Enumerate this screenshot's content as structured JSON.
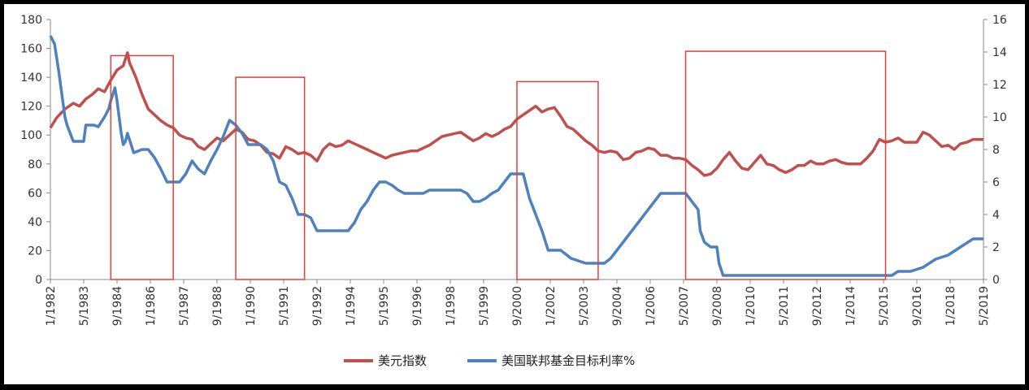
{
  "chart_data": {
    "type": "line",
    "title": "",
    "xlabel": "",
    "ylabel_left": "",
    "ylabel_right": "",
    "ylim_left": [
      0,
      180
    ],
    "ylim_right": [
      0,
      16
    ],
    "y_ticks_left": [
      0,
      20,
      40,
      60,
      80,
      100,
      120,
      140,
      160,
      180
    ],
    "y_ticks_right": [
      0,
      2,
      4,
      6,
      8,
      10,
      12,
      14,
      16
    ],
    "x_ticks": [
      "1/1982",
      "5/1983",
      "9/1984",
      "1/1986",
      "5/1987",
      "9/1988",
      "1/1990",
      "5/1991",
      "9/1992",
      "1/1994",
      "5/1995",
      "9/1996",
      "1/1998",
      "5/1999",
      "9/2000",
      "1/2002",
      "5/2003",
      "9/2004",
      "1/2006",
      "5/2007",
      "9/2008",
      "1/2010",
      "5/2011",
      "9/2012",
      "1/2014",
      "5/2015",
      "9/2016",
      "1/2018",
      "5/2019"
    ],
    "x_range": [
      "1982-01",
      "2019-05"
    ],
    "grid": false,
    "legend_position": "bottom",
    "series": [
      {
        "name": "美元指数",
        "axis": "left",
        "color": "#c0504d",
        "points": [
          [
            "1982-01",
            105
          ],
          [
            "1982-04",
            112
          ],
          [
            "1982-08",
            118
          ],
          [
            "1982-12",
            122
          ],
          [
            "1983-03",
            120
          ],
          [
            "1983-06",
            125
          ],
          [
            "1983-09",
            128
          ],
          [
            "1983-12",
            132
          ],
          [
            "1984-03",
            130
          ],
          [
            "1984-06",
            138
          ],
          [
            "1984-09",
            145
          ],
          [
            "1984-12",
            148
          ],
          [
            "1985-02",
            157
          ],
          [
            "1985-03",
            150
          ],
          [
            "1985-06",
            140
          ],
          [
            "1985-09",
            128
          ],
          [
            "1985-12",
            118
          ],
          [
            "1986-03",
            114
          ],
          [
            "1986-06",
            110
          ],
          [
            "1986-09",
            107
          ],
          [
            "1986-12",
            105
          ],
          [
            "1987-03",
            100
          ],
          [
            "1987-06",
            98
          ],
          [
            "1987-09",
            97
          ],
          [
            "1987-12",
            92
          ],
          [
            "1988-03",
            90
          ],
          [
            "1988-06",
            94
          ],
          [
            "1988-09",
            98
          ],
          [
            "1988-12",
            96
          ],
          [
            "1989-03",
            100
          ],
          [
            "1989-06",
            104
          ],
          [
            "1989-09",
            102
          ],
          [
            "1989-12",
            97
          ],
          [
            "1990-03",
            96
          ],
          [
            "1990-06",
            93
          ],
          [
            "1990-09",
            88
          ],
          [
            "1990-12",
            87
          ],
          [
            "1991-03",
            84
          ],
          [
            "1991-06",
            92
          ],
          [
            "1991-09",
            90
          ],
          [
            "1991-12",
            87
          ],
          [
            "1992-03",
            88
          ],
          [
            "1992-06",
            86
          ],
          [
            "1992-09",
            82
          ],
          [
            "1992-12",
            90
          ],
          [
            "1993-03",
            94
          ],
          [
            "1993-06",
            92
          ],
          [
            "1993-09",
            93
          ],
          [
            "1993-12",
            96
          ],
          [
            "1994-03",
            94
          ],
          [
            "1994-06",
            92
          ],
          [
            "1994-09",
            90
          ],
          [
            "1994-12",
            88
          ],
          [
            "1995-03",
            86
          ],
          [
            "1995-06",
            84
          ],
          [
            "1995-09",
            86
          ],
          [
            "1995-12",
            87
          ],
          [
            "1996-03",
            88
          ],
          [
            "1996-06",
            89
          ],
          [
            "1996-09",
            89
          ],
          [
            "1996-12",
            91
          ],
          [
            "1997-03",
            93
          ],
          [
            "1997-06",
            96
          ],
          [
            "1997-09",
            99
          ],
          [
            "1997-12",
            100
          ],
          [
            "1998-03",
            101
          ],
          [
            "1998-06",
            102
          ],
          [
            "1998-09",
            99
          ],
          [
            "1998-12",
            96
          ],
          [
            "1999-03",
            98
          ],
          [
            "1999-06",
            101
          ],
          [
            "1999-09",
            99
          ],
          [
            "1999-12",
            101
          ],
          [
            "2000-03",
            104
          ],
          [
            "2000-06",
            106
          ],
          [
            "2000-09",
            111
          ],
          [
            "2000-12",
            114
          ],
          [
            "2001-03",
            117
          ],
          [
            "2001-06",
            120
          ],
          [
            "2001-09",
            116
          ],
          [
            "2001-12",
            118
          ],
          [
            "2002-03",
            119
          ],
          [
            "2002-06",
            113
          ],
          [
            "2002-09",
            106
          ],
          [
            "2002-12",
            104
          ],
          [
            "2003-03",
            100
          ],
          [
            "2003-06",
            96
          ],
          [
            "2003-09",
            93
          ],
          [
            "2003-12",
            89
          ],
          [
            "2004-03",
            88
          ],
          [
            "2004-06",
            89
          ],
          [
            "2004-09",
            88
          ],
          [
            "2004-12",
            83
          ],
          [
            "2005-03",
            84
          ],
          [
            "2005-06",
            88
          ],
          [
            "2005-09",
            89
          ],
          [
            "2005-12",
            91
          ],
          [
            "2006-03",
            90
          ],
          [
            "2006-06",
            86
          ],
          [
            "2006-09",
            86
          ],
          [
            "2006-12",
            84
          ],
          [
            "2007-03",
            84
          ],
          [
            "2007-06",
            83
          ],
          [
            "2007-09",
            79
          ],
          [
            "2007-12",
            76
          ],
          [
            "2008-03",
            72
          ],
          [
            "2008-06",
            73
          ],
          [
            "2008-09",
            77
          ],
          [
            "2008-12",
            83
          ],
          [
            "2009-03",
            88
          ],
          [
            "2009-06",
            82
          ],
          [
            "2009-09",
            77
          ],
          [
            "2009-12",
            76
          ],
          [
            "2010-03",
            81
          ],
          [
            "2010-06",
            86
          ],
          [
            "2010-09",
            80
          ],
          [
            "2010-12",
            79
          ],
          [
            "2011-03",
            76
          ],
          [
            "2011-06",
            74
          ],
          [
            "2011-09",
            76
          ],
          [
            "2011-12",
            79
          ],
          [
            "2012-03",
            79
          ],
          [
            "2012-06",
            82
          ],
          [
            "2012-09",
            80
          ],
          [
            "2012-12",
            80
          ],
          [
            "2013-03",
            82
          ],
          [
            "2013-06",
            83
          ],
          [
            "2013-09",
            81
          ],
          [
            "2013-12",
            80
          ],
          [
            "2014-03",
            80
          ],
          [
            "2014-06",
            80
          ],
          [
            "2014-09",
            84
          ],
          [
            "2014-12",
            89
          ],
          [
            "2015-03",
            97
          ],
          [
            "2015-06",
            95
          ],
          [
            "2015-09",
            96
          ],
          [
            "2015-12",
            98
          ],
          [
            "2016-03",
            95
          ],
          [
            "2016-06",
            95
          ],
          [
            "2016-09",
            95
          ],
          [
            "2016-12",
            102
          ],
          [
            "2017-03",
            100
          ],
          [
            "2017-06",
            96
          ],
          [
            "2017-09",
            92
          ],
          [
            "2017-12",
            93
          ],
          [
            "2018-03",
            90
          ],
          [
            "2018-06",
            94
          ],
          [
            "2018-09",
            95
          ],
          [
            "2018-12",
            97
          ],
          [
            "2019-03",
            97
          ],
          [
            "2019-05",
            97
          ]
        ]
      },
      {
        "name": "美国联邦基金目标利率%",
        "axis": "right",
        "color": "#4f81bd",
        "points": [
          [
            "1982-01",
            15
          ],
          [
            "1982-03",
            14.5
          ],
          [
            "1982-05",
            12.8
          ],
          [
            "1982-08",
            10
          ],
          [
            "1982-09",
            9.5
          ],
          [
            "1982-12",
            8.5
          ],
          [
            "1983-03",
            8.5
          ],
          [
            "1983-05",
            8.5
          ],
          [
            "1983-06",
            9.5
          ],
          [
            "1983-08",
            9.5
          ],
          [
            "1983-10",
            9.5
          ],
          [
            "1983-12",
            9.4
          ],
          [
            "1984-03",
            10
          ],
          [
            "1984-05",
            10.5
          ],
          [
            "1984-06",
            11
          ],
          [
            "1984-08",
            11.8
          ],
          [
            "1984-09",
            11
          ],
          [
            "1984-11",
            9
          ],
          [
            "1984-12",
            8.3
          ],
          [
            "1985-01",
            8.5
          ],
          [
            "1985-02",
            9
          ],
          [
            "1985-05",
            7.8
          ],
          [
            "1985-09",
            8
          ],
          [
            "1985-12",
            8
          ],
          [
            "1986-03",
            7.5
          ],
          [
            "1986-06",
            6.8
          ],
          [
            "1986-09",
            6
          ],
          [
            "1986-12",
            6
          ],
          [
            "1987-03",
            6
          ],
          [
            "1987-06",
            6.5
          ],
          [
            "1987-09",
            7.3
          ],
          [
            "1987-12",
            6.8
          ],
          [
            "1988-03",
            6.5
          ],
          [
            "1988-06",
            7.3
          ],
          [
            "1988-09",
            8
          ],
          [
            "1988-12",
            8.8
          ],
          [
            "1989-03",
            9.8
          ],
          [
            "1989-06",
            9.5
          ],
          [
            "1989-09",
            9
          ],
          [
            "1989-12",
            8.3
          ],
          [
            "1990-03",
            8.3
          ],
          [
            "1990-06",
            8.3
          ],
          [
            "1990-09",
            8
          ],
          [
            "1990-12",
            7.3
          ],
          [
            "1991-03",
            6
          ],
          [
            "1991-06",
            5.8
          ],
          [
            "1991-09",
            5
          ],
          [
            "1991-12",
            4
          ],
          [
            "1992-03",
            4
          ],
          [
            "1992-06",
            3.8
          ],
          [
            "1992-09",
            3
          ],
          [
            "1992-12",
            3
          ],
          [
            "1993-06",
            3
          ],
          [
            "1993-12",
            3
          ],
          [
            "1994-03",
            3.5
          ],
          [
            "1994-06",
            4.3
          ],
          [
            "1994-09",
            4.8
          ],
          [
            "1994-12",
            5.5
          ],
          [
            "1995-03",
            6
          ],
          [
            "1995-06",
            6
          ],
          [
            "1995-09",
            5.8
          ],
          [
            "1995-12",
            5.5
          ],
          [
            "1996-03",
            5.3
          ],
          [
            "1996-12",
            5.3
          ],
          [
            "1997-03",
            5.5
          ],
          [
            "1997-12",
            5.5
          ],
          [
            "1998-06",
            5.5
          ],
          [
            "1998-09",
            5.3
          ],
          [
            "1998-12",
            4.8
          ],
          [
            "1999-03",
            4.8
          ],
          [
            "1999-06",
            5
          ],
          [
            "1999-09",
            5.3
          ],
          [
            "1999-12",
            5.5
          ],
          [
            "2000-03",
            6
          ],
          [
            "2000-06",
            6.5
          ],
          [
            "2000-12",
            6.5
          ],
          [
            "2001-01",
            6
          ],
          [
            "2001-03",
            5
          ],
          [
            "2001-06",
            4
          ],
          [
            "2001-09",
            3
          ],
          [
            "2001-12",
            1.8
          ],
          [
            "2002-06",
            1.8
          ],
          [
            "2002-11",
            1.3
          ],
          [
            "2003-06",
            1
          ],
          [
            "2003-12",
            1
          ],
          [
            "2004-03",
            1
          ],
          [
            "2004-06",
            1.3
          ],
          [
            "2004-09",
            1.8
          ],
          [
            "2004-12",
            2.3
          ],
          [
            "2005-03",
            2.8
          ],
          [
            "2005-06",
            3.3
          ],
          [
            "2005-09",
            3.8
          ],
          [
            "2005-12",
            4.3
          ],
          [
            "2006-03",
            4.8
          ],
          [
            "2006-06",
            5.3
          ],
          [
            "2006-12",
            5.3
          ],
          [
            "2007-06",
            5.3
          ],
          [
            "2007-09",
            4.8
          ],
          [
            "2007-12",
            4.3
          ],
          [
            "2008-01",
            3
          ],
          [
            "2008-03",
            2.3
          ],
          [
            "2008-06",
            2
          ],
          [
            "2008-09",
            2
          ],
          [
            "2008-10",
            1
          ],
          [
            "2008-12",
            0.25
          ],
          [
            "2010-06",
            0.25
          ],
          [
            "2012-06",
            0.25
          ],
          [
            "2014-06",
            0.25
          ],
          [
            "2015-09",
            0.25
          ],
          [
            "2015-12",
            0.5
          ],
          [
            "2016-06",
            0.5
          ],
          [
            "2016-12",
            0.75
          ],
          [
            "2017-03",
            1
          ],
          [
            "2017-06",
            1.25
          ],
          [
            "2017-12",
            1.5
          ],
          [
            "2018-03",
            1.75
          ],
          [
            "2018-06",
            2
          ],
          [
            "2018-09",
            2.25
          ],
          [
            "2018-12",
            2.5
          ],
          [
            "2019-05",
            2.5
          ]
        ]
      }
    ],
    "highlight_boxes": [
      {
        "from": "1984-06",
        "to": "1986-12",
        "top_value": 155
      },
      {
        "from": "1989-06",
        "to": "1992-03",
        "top_value": 140
      },
      {
        "from": "2000-09",
        "to": "2003-12",
        "top_value": 137
      },
      {
        "from": "2007-06",
        "to": "2015-06",
        "top_value": 158
      }
    ]
  }
}
